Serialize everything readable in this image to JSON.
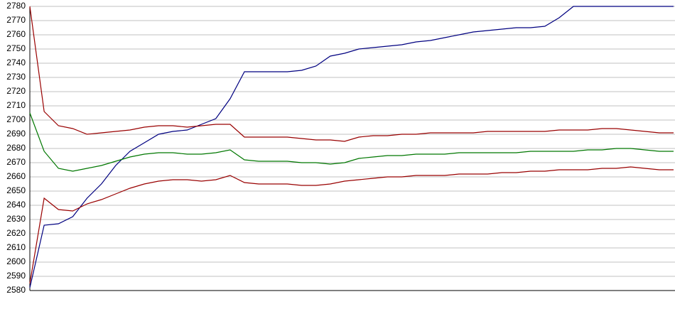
{
  "chart_data": {
    "type": "line",
    "categories": [
      null,
      null,
      null,
      null,
      null,
      null,
      null,
      null,
      null,
      null,
      null,
      null,
      null,
      null,
      null,
      null,
      null,
      null,
      null,
      null,
      null,
      null,
      null,
      null,
      null,
      null,
      null,
      null,
      null,
      null,
      null,
      null,
      null,
      null,
      null,
      null,
      null,
      null,
      null,
      null,
      null,
      null,
      null,
      null,
      null,
      null
    ],
    "series": [
      {
        "color": "#000080",
        "values": [
          2582,
          2626,
          2627,
          2632,
          2645,
          2655,
          2668,
          2678,
          2684,
          2690,
          2692,
          2693,
          2697,
          2701,
          2715,
          2734,
          2734,
          2734,
          2734,
          2735,
          2738,
          2745,
          2747,
          2750,
          2751,
          2752,
          2753,
          2755,
          2756,
          2758,
          2760,
          2762,
          2763,
          2764,
          2765,
          2765,
          2766,
          2772,
          2780,
          2780,
          2780,
          2780,
          2780,
          2780,
          2780,
          2780
        ]
      },
      {
        "color": "#990000",
        "values": [
          2780,
          2706,
          2696,
          2694,
          2690,
          2691,
          2692,
          2693,
          2695,
          2696,
          2696,
          2695,
          2696,
          2697,
          2697,
          2688,
          2688,
          2688,
          2688,
          2687,
          2686,
          2686,
          2685,
          2688,
          2689,
          2689,
          2690,
          2690,
          2691,
          2691,
          2691,
          2691,
          2692,
          2692,
          2692,
          2692,
          2692,
          2693,
          2693,
          2693,
          2694,
          2694,
          2693,
          2692,
          2691,
          2691
        ]
      },
      {
        "color": "#007700",
        "values": [
          2705,
          2678,
          2666,
          2664,
          2666,
          2668,
          2671,
          2674,
          2676,
          2677,
          2677,
          2676,
          2676,
          2677,
          2679,
          2672,
          2671,
          2671,
          2671,
          2670,
          2670,
          2669,
          2670,
          2673,
          2674,
          2675,
          2675,
          2676,
          2676,
          2676,
          2677,
          2677,
          2677,
          2677,
          2677,
          2678,
          2678,
          2678,
          2678,
          2679,
          2679,
          2680,
          2680,
          2679,
          2678,
          2678
        ]
      },
      {
        "color": "#990000",
        "values": [
          2585,
          2645,
          2637,
          2636,
          2641,
          2644,
          2648,
          2652,
          2655,
          2657,
          2658,
          2658,
          2657,
          2658,
          2661,
          2656,
          2655,
          2655,
          2655,
          2654,
          2654,
          2655,
          2657,
          2658,
          2659,
          2660,
          2660,
          2661,
          2661,
          2661,
          2662,
          2662,
          2662,
          2663,
          2663,
          2664,
          2664,
          2665,
          2665,
          2665,
          2666,
          2666,
          2667,
          2666,
          2665,
          2665
        ]
      }
    ],
    "ylim": [
      2580,
      2780
    ],
    "yticks": [
      2580,
      2590,
      2600,
      2610,
      2620,
      2630,
      2640,
      2650,
      2660,
      2670,
      2680,
      2690,
      2700,
      2710,
      2720,
      2730,
      2740,
      2750,
      2760,
      2770,
      2780
    ],
    "grid": true
  }
}
